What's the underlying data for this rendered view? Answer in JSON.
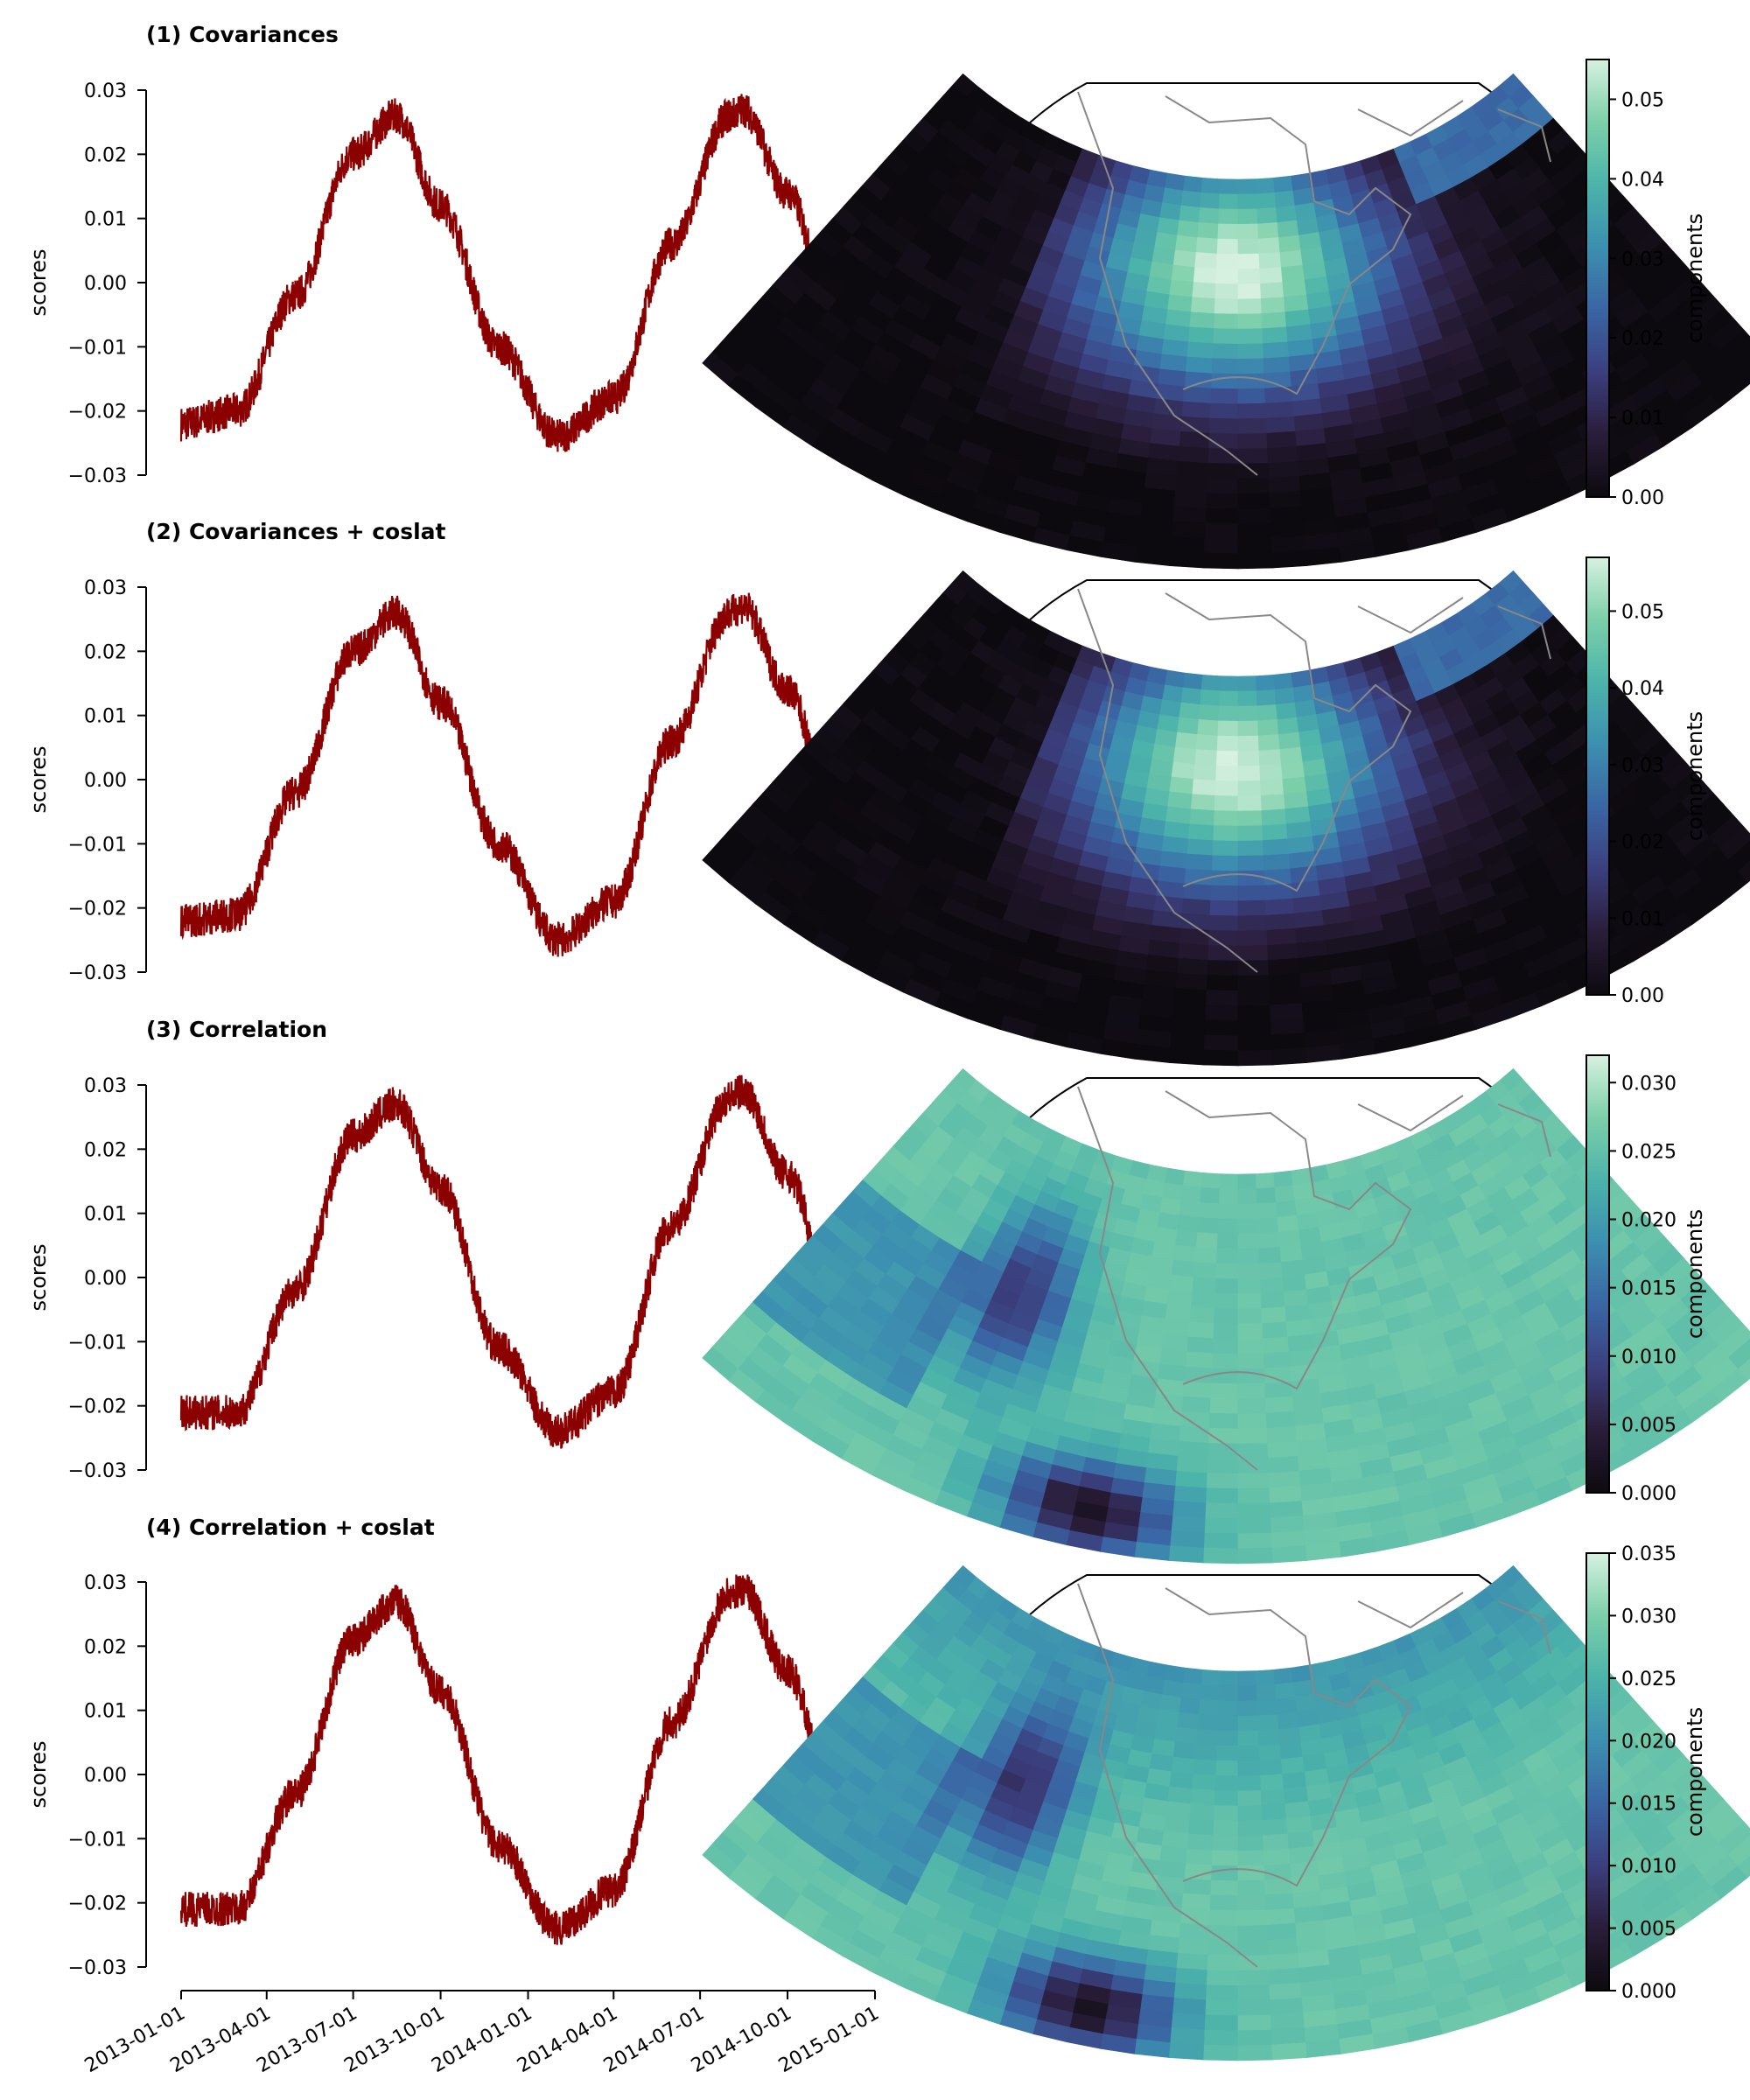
{
  "figure": {
    "shared_x_tick_labels": [
      "2013-01-01",
      "2013-04-01",
      "2013-07-01",
      "2013-10-01",
      "2014-01-01",
      "2014-04-01",
      "2014-07-01",
      "2014-10-01",
      "2015-01-01"
    ],
    "line_color": "#8b0000",
    "colormap": [
      "#0d0a0f",
      "#2a1d3a",
      "#3b3f7e",
      "#3a65a4",
      "#3c8fb0",
      "#4cb3aa",
      "#7ccfaa",
      "#d7f1e0"
    ]
  },
  "chart_data": [
    {
      "type": "line",
      "title": "(1) Covariances",
      "ylabel": "scores",
      "ylim": [
        -0.03,
        0.03
      ],
      "y_tick_labels": [
        "0.03",
        "0.02",
        "0.01",
        "0.00",
        "−0.01",
        "−0.02",
        "−0.03"
      ],
      "x": [
        "2013-01-01",
        "2013-03-01",
        "2013-05-01",
        "2013-07-01",
        "2013-08-15",
        "2013-10-01",
        "2013-12-01",
        "2014-02-01",
        "2014-04-01",
        "2014-06-01",
        "2014-08-01",
        "2014-08-15",
        "2014-10-01",
        "2014-12-01",
        "2015-01-01"
      ],
      "values": [
        -0.022,
        -0.02,
        -0.002,
        0.02,
        0.026,
        0.012,
        -0.01,
        -0.024,
        -0.018,
        0.006,
        0.026,
        0.027,
        0.014,
        -0.015,
        -0.021
      ],
      "map": {
        "colorbar_label": "components",
        "colorbar_ticks": [
          "0.00",
          "0.01",
          "0.02",
          "0.03",
          "0.04",
          "0.05"
        ],
        "colorbar_range": [
          0.0,
          0.055
        ],
        "pattern": "cov"
      }
    },
    {
      "type": "line",
      "title": "(2) Covariances + coslat",
      "ylabel": "scores",
      "ylim": [
        -0.03,
        0.03
      ],
      "y_tick_labels": [
        "0.03",
        "0.02",
        "0.01",
        "0.00",
        "−0.01",
        "−0.02",
        "−0.03"
      ],
      "x": [
        "2013-01-01",
        "2013-03-01",
        "2013-05-01",
        "2013-07-01",
        "2013-08-15",
        "2013-10-01",
        "2013-12-01",
        "2014-02-01",
        "2014-04-01",
        "2014-06-01",
        "2014-08-01",
        "2014-08-15",
        "2014-10-01",
        "2014-12-01",
        "2015-01-01"
      ],
      "values": [
        -0.022,
        -0.021,
        -0.002,
        0.02,
        0.026,
        0.012,
        -0.01,
        -0.025,
        -0.019,
        0.006,
        0.026,
        0.027,
        0.014,
        -0.015,
        -0.022
      ],
      "map": {
        "colorbar_label": "components",
        "colorbar_ticks": [
          "0.00",
          "0.01",
          "0.02",
          "0.03",
          "0.04",
          "0.05"
        ],
        "colorbar_range": [
          0.0,
          0.057
        ],
        "pattern": "cov"
      }
    },
    {
      "type": "line",
      "title": "(3) Correlation",
      "ylabel": "scores",
      "ylim": [
        -0.03,
        0.03
      ],
      "y_tick_labels": [
        "0.03",
        "0.02",
        "0.01",
        "0.00",
        "−0.01",
        "−0.02",
        "−0.03"
      ],
      "x": [
        "2013-01-01",
        "2013-03-01",
        "2013-05-01",
        "2013-07-01",
        "2013-08-15",
        "2013-10-01",
        "2013-12-01",
        "2014-02-01",
        "2014-04-01",
        "2014-06-01",
        "2014-08-01",
        "2014-08-15",
        "2014-10-01",
        "2014-12-01",
        "2015-01-01"
      ],
      "values": [
        -0.021,
        -0.021,
        -0.002,
        0.022,
        0.027,
        0.014,
        -0.011,
        -0.024,
        -0.018,
        0.008,
        0.028,
        0.029,
        0.016,
        -0.013,
        -0.019
      ],
      "map": {
        "colorbar_label": "components",
        "colorbar_ticks": [
          "0.000",
          "0.005",
          "0.010",
          "0.015",
          "0.020",
          "0.025",
          "0.030"
        ],
        "colorbar_range": [
          0.0,
          0.032
        ],
        "pattern": "cor"
      }
    },
    {
      "type": "line",
      "title": "(4) Correlation + coslat",
      "ylabel": "scores",
      "ylim": [
        -0.03,
        0.03
      ],
      "y_tick_labels": [
        "0.03",
        "0.02",
        "0.01",
        "0.00",
        "−0.01",
        "−0.02",
        "−0.03"
      ],
      "x": [
        "2013-01-01",
        "2013-03-01",
        "2013-05-01",
        "2013-07-01",
        "2013-08-15",
        "2013-10-01",
        "2013-12-01",
        "2014-02-01",
        "2014-04-01",
        "2014-06-01",
        "2014-08-01",
        "2014-08-15",
        "2014-10-01",
        "2014-12-01",
        "2015-01-01"
      ],
      "values": [
        -0.021,
        -0.021,
        -0.003,
        0.021,
        0.027,
        0.013,
        -0.011,
        -0.024,
        -0.018,
        0.008,
        0.028,
        0.029,
        0.016,
        -0.013,
        -0.019
      ],
      "map": {
        "colorbar_label": "components",
        "colorbar_ticks": [
          "0.000",
          "0.005",
          "0.010",
          "0.015",
          "0.020",
          "0.025",
          "0.030",
          "0.035"
        ],
        "colorbar_range": [
          0.0,
          0.035
        ],
        "pattern": "corlat"
      }
    }
  ]
}
